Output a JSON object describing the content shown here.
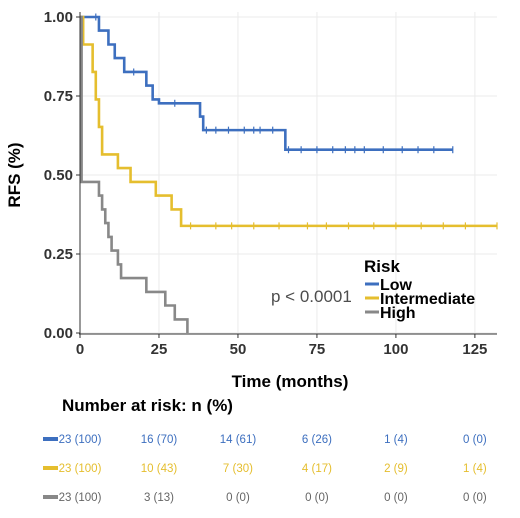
{
  "colors": {
    "low": "#3d6fbf",
    "intermediate": "#e5be2e",
    "high": "#888888",
    "axis": "#333333"
  },
  "chart_data": {
    "type": "line",
    "step": true,
    "xlabel": "Time (months)",
    "ylabel": "RFS (%)",
    "xlim": [
      0,
      132
    ],
    "ylim": [
      0,
      1
    ],
    "xticks": [
      0,
      25,
      50,
      75,
      100,
      125
    ],
    "yticks": [
      0.0,
      0.25,
      0.5,
      0.75,
      1.0
    ],
    "ytick_labels": [
      "0.00",
      "0.25",
      "0.50",
      "0.75",
      "1.00"
    ],
    "grid": true,
    "legend": {
      "title": "Risk",
      "placement": "inside-right",
      "entries": [
        "Low",
        "Intermediate",
        "High"
      ]
    },
    "annotation": "p < 0.0001",
    "series": [
      {
        "name": "Low",
        "color": "#3d6fbf",
        "steps": [
          [
            0,
            1.0
          ],
          [
            6,
            0.957
          ],
          [
            9,
            0.913
          ],
          [
            11,
            0.87
          ],
          [
            14,
            0.826
          ],
          [
            21,
            0.783
          ],
          [
            23,
            0.739
          ],
          [
            25,
            0.727
          ],
          [
            38,
            0.685
          ],
          [
            39,
            0.642
          ],
          [
            65,
            0.58
          ],
          [
            118,
            0.58
          ]
        ],
        "censor": [
          5,
          17,
          30,
          40,
          43,
          47,
          52,
          55,
          57,
          61,
          66,
          70,
          75,
          80,
          84,
          87,
          90,
          96,
          102,
          107,
          112,
          118
        ]
      },
      {
        "name": "Intermediate",
        "color": "#e5be2e",
        "steps": [
          [
            0,
            1.0
          ],
          [
            1,
            0.913
          ],
          [
            4,
            0.826
          ],
          [
            5,
            0.739
          ],
          [
            6,
            0.652
          ],
          [
            7,
            0.565
          ],
          [
            12,
            0.522
          ],
          [
            16,
            0.478
          ],
          [
            24,
            0.435
          ],
          [
            29,
            0.391
          ],
          [
            32,
            0.339
          ],
          [
            132,
            0.339
          ]
        ],
        "censor": [
          35,
          43,
          48,
          55,
          63,
          72,
          78,
          85,
          93,
          100,
          108,
          115,
          122,
          132
        ]
      },
      {
        "name": "High",
        "color": "#888888",
        "steps": [
          [
            0,
            1.0
          ],
          [
            0.5,
            0.478
          ],
          [
            6,
            0.435
          ],
          [
            7,
            0.391
          ],
          [
            8,
            0.348
          ],
          [
            9,
            0.304
          ],
          [
            10,
            0.261
          ],
          [
            12,
            0.217
          ],
          [
            13,
            0.174
          ],
          [
            21,
            0.13
          ],
          [
            27,
            0.087
          ],
          [
            30,
            0.043
          ],
          [
            34,
            0.0
          ]
        ],
        "censor": []
      }
    ]
  },
  "risk_table": {
    "title": "Number at risk: n (%)",
    "times": [
      0,
      25,
      50,
      75,
      100,
      125
    ],
    "rows": [
      {
        "group": "Low",
        "cells": [
          "23 (100)",
          "16 (70)",
          "14 (61)",
          "6 (26)",
          "1 (4)",
          "0 (0)"
        ]
      },
      {
        "group": "Intermediate",
        "cells": [
          "23 (100)",
          "10 (43)",
          "7 (30)",
          "4 (17)",
          "2 (9)",
          "1 (4)"
        ]
      },
      {
        "group": "High",
        "cells": [
          "23 (100)",
          "3 (13)",
          "0 (0)",
          "0 (0)",
          "0 (0)",
          "0 (0)"
        ]
      }
    ]
  }
}
